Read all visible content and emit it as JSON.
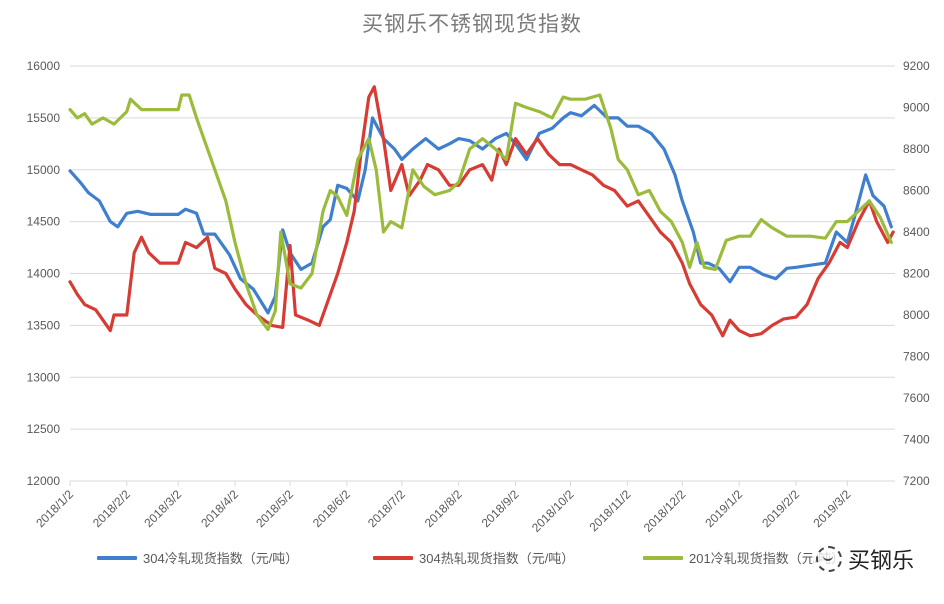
{
  "chart_data": {
    "type": "line",
    "title": "买钢乐不锈钢现货指数",
    "xlabel": "",
    "ylabel_left": "",
    "ylabel_right": "",
    "x_ticks": [
      "2018/1/2",
      "2018/2/2",
      "2018/3/2",
      "2018/4/2",
      "2018/5/2",
      "2018/6/2",
      "2018/7/2",
      "2018/8/2",
      "2018/9/2",
      "2018/10/2",
      "2018/11/2",
      "2018/12/2",
      "2019/1/2",
      "2019/2/2",
      "2019/3/2"
    ],
    "y_left": {
      "ticks": [
        12000,
        12500,
        13000,
        13500,
        14000,
        14500,
        15000,
        15500,
        16000
      ],
      "ylim": [
        12000,
        16000
      ]
    },
    "y_right": {
      "ticks": [
        7200,
        7400,
        7600,
        7800,
        8000,
        8200,
        8400,
        8600,
        8800,
        9000,
        9200
      ],
      "ylim": [
        7200,
        9200
      ]
    },
    "grid": true,
    "legend_position": "bottom",
    "series": [
      {
        "name": "304冷轧现货指数（元/吨）",
        "axis": "left",
        "color": "#3f7fce",
        "points": [
          [
            "2018/1/2",
            14990
          ],
          [
            "2018/1/8",
            14870
          ],
          [
            "2018/1/12",
            14780
          ],
          [
            "2018/1/18",
            14700
          ],
          [
            "2018/1/24",
            14500
          ],
          [
            "2018/1/28",
            14450
          ],
          [
            "2018/2/2",
            14580
          ],
          [
            "2018/2/8",
            14600
          ],
          [
            "2018/2/15",
            14570
          ],
          [
            "2018/2/25",
            14570
          ],
          [
            "2018/3/2",
            14570
          ],
          [
            "2018/3/6",
            14620
          ],
          [
            "2018/3/12",
            14580
          ],
          [
            "2018/3/16",
            14380
          ],
          [
            "2018/3/22",
            14380
          ],
          [
            "2018/3/30",
            14180
          ],
          [
            "2018/4/5",
            13950
          ],
          [
            "2018/4/12",
            13850
          ],
          [
            "2018/4/20",
            13620
          ],
          [
            "2018/4/24",
            13780
          ],
          [
            "2018/4/28",
            14420
          ],
          [
            "2018/5/2",
            14200
          ],
          [
            "2018/5/8",
            14040
          ],
          [
            "2018/5/14",
            14100
          ],
          [
            "2018/5/20",
            14450
          ],
          [
            "2018/5/24",
            14520
          ],
          [
            "2018/5/28",
            14850
          ],
          [
            "2018/6/2",
            14820
          ],
          [
            "2018/6/8",
            14700
          ],
          [
            "2018/6/12",
            15000
          ],
          [
            "2018/6/16",
            15500
          ],
          [
            "2018/6/22",
            15300
          ],
          [
            "2018/6/28",
            15200
          ],
          [
            "2018/7/2",
            15100
          ],
          [
            "2018/7/8",
            15200
          ],
          [
            "2018/7/15",
            15300
          ],
          [
            "2018/7/22",
            15200
          ],
          [
            "2018/7/28",
            15250
          ],
          [
            "2018/8/2",
            15300
          ],
          [
            "2018/8/8",
            15280
          ],
          [
            "2018/8/15",
            15200
          ],
          [
            "2018/8/22",
            15300
          ],
          [
            "2018/8/28",
            15350
          ],
          [
            "2018/9/2",
            15250
          ],
          [
            "2018/9/8",
            15100
          ],
          [
            "2018/9/15",
            15350
          ],
          [
            "2018/9/22",
            15400
          ],
          [
            "2018/9/28",
            15500
          ],
          [
            "2018/10/2",
            15550
          ],
          [
            "2018/10/8",
            15520
          ],
          [
            "2018/10/15",
            15620
          ],
          [
            "2018/10/22",
            15500
          ],
          [
            "2018/10/28",
            15500
          ],
          [
            "2018/11/2",
            15420
          ],
          [
            "2018/11/8",
            15420
          ],
          [
            "2018/11/15",
            15350
          ],
          [
            "2018/11/22",
            15200
          ],
          [
            "2018/11/28",
            14950
          ],
          [
            "2018/12/2",
            14700
          ],
          [
            "2018/12/8",
            14400
          ],
          [
            "2018/12/12",
            14100
          ],
          [
            "2018/12/16",
            14100
          ],
          [
            "2018/12/22",
            14050
          ],
          [
            "2018/12/28",
            13920
          ],
          [
            "2019/1/2",
            14060
          ],
          [
            "2019/1/8",
            14060
          ],
          [
            "2019/1/15",
            13990
          ],
          [
            "2019/1/22",
            13950
          ],
          [
            "2019/1/28",
            14050
          ],
          [
            "2019/2/2",
            14060
          ],
          [
            "2019/2/10",
            14080
          ],
          [
            "2019/2/18",
            14100
          ],
          [
            "2019/2/24",
            14400
          ],
          [
            "2019/3/2",
            14300
          ],
          [
            "2019/3/6",
            14550
          ],
          [
            "2019/3/12",
            14950
          ],
          [
            "2019/3/16",
            14750
          ],
          [
            "2019/3/22",
            14650
          ],
          [
            "2019/3/26",
            14450
          ]
        ]
      },
      {
        "name": "304热轧现货指数（元/吨）",
        "axis": "left",
        "color": "#d63c33",
        "points": [
          [
            "2018/1/2",
            13920
          ],
          [
            "2018/1/6",
            13800
          ],
          [
            "2018/1/10",
            13700
          ],
          [
            "2018/1/16",
            13650
          ],
          [
            "2018/1/20",
            13550
          ],
          [
            "2018/1/24",
            13450
          ],
          [
            "2018/1/26",
            13600
          ],
          [
            "2018/2/2",
            13600
          ],
          [
            "2018/2/6",
            14200
          ],
          [
            "2018/2/10",
            14350
          ],
          [
            "2018/2/14",
            14200
          ],
          [
            "2018/2/20",
            14100
          ],
          [
            "2018/3/2",
            14100
          ],
          [
            "2018/3/6",
            14300
          ],
          [
            "2018/3/12",
            14250
          ],
          [
            "2018/3/18",
            14350
          ],
          [
            "2018/3/22",
            14050
          ],
          [
            "2018/3/28",
            14000
          ],
          [
            "2018/4/2",
            13850
          ],
          [
            "2018/4/8",
            13700
          ],
          [
            "2018/4/14",
            13600
          ],
          [
            "2018/4/22",
            13500
          ],
          [
            "2018/4/28",
            13480
          ],
          [
            "2018/5/2",
            14270
          ],
          [
            "2018/5/5",
            13600
          ],
          [
            "2018/5/12",
            13550
          ],
          [
            "2018/5/18",
            13500
          ],
          [
            "2018/5/24",
            13800
          ],
          [
            "2018/5/28",
            14000
          ],
          [
            "2018/6/2",
            14300
          ],
          [
            "2018/6/6",
            14600
          ],
          [
            "2018/6/10",
            15200
          ],
          [
            "2018/6/14",
            15700
          ],
          [
            "2018/6/17",
            15800
          ],
          [
            "2018/6/22",
            15300
          ],
          [
            "2018/6/26",
            14800
          ],
          [
            "2018/7/2",
            15050
          ],
          [
            "2018/7/6",
            14750
          ],
          [
            "2018/7/12",
            14900
          ],
          [
            "2018/7/16",
            15050
          ],
          [
            "2018/7/22",
            15000
          ],
          [
            "2018/7/28",
            14850
          ],
          [
            "2018/8/2",
            14850
          ],
          [
            "2018/8/8",
            15000
          ],
          [
            "2018/8/15",
            15050
          ],
          [
            "2018/8/20",
            14900
          ],
          [
            "2018/8/24",
            15200
          ],
          [
            "2018/8/28",
            15050
          ],
          [
            "2018/9/2",
            15300
          ],
          [
            "2018/9/8",
            15150
          ],
          [
            "2018/9/14",
            15300
          ],
          [
            "2018/9/20",
            15150
          ],
          [
            "2018/9/26",
            15050
          ],
          [
            "2018/10/2",
            15050
          ],
          [
            "2018/10/8",
            15000
          ],
          [
            "2018/10/14",
            14950
          ],
          [
            "2018/10/20",
            14850
          ],
          [
            "2018/10/26",
            14800
          ],
          [
            "2018/11/2",
            14650
          ],
          [
            "2018/11/8",
            14700
          ],
          [
            "2018/11/14",
            14550
          ],
          [
            "2018/11/20",
            14400
          ],
          [
            "2018/11/26",
            14300
          ],
          [
            "2018/12/2",
            14100
          ],
          [
            "2018/12/6",
            13900
          ],
          [
            "2018/12/12",
            13700
          ],
          [
            "2018/12/18",
            13600
          ],
          [
            "2018/12/24",
            13400
          ],
          [
            "2018/12/28",
            13550
          ],
          [
            "2019/1/2",
            13450
          ],
          [
            "2019/1/8",
            13400
          ],
          [
            "2019/1/14",
            13420
          ],
          [
            "2019/1/20",
            13500
          ],
          [
            "2019/1/26",
            13560
          ],
          [
            "2019/2/2",
            13580
          ],
          [
            "2019/2/8",
            13700
          ],
          [
            "2019/2/14",
            13950
          ],
          [
            "2019/2/20",
            14100
          ],
          [
            "2019/2/26",
            14300
          ],
          [
            "2019/3/2",
            14250
          ],
          [
            "2019/3/8",
            14500
          ],
          [
            "2019/3/14",
            14700
          ],
          [
            "2019/3/18",
            14500
          ],
          [
            "2019/3/24",
            14300
          ],
          [
            "2019/3/27",
            14400
          ]
        ]
      },
      {
        "name": "201冷轧现货指数（元/吨）",
        "axis": "right",
        "color": "#9bbb3c",
        "points": [
          [
            "2018/1/2",
            8990
          ],
          [
            "2018/1/6",
            8950
          ],
          [
            "2018/1/10",
            8970
          ],
          [
            "2018/1/14",
            8920
          ],
          [
            "2018/1/20",
            8950
          ],
          [
            "2018/1/26",
            8920
          ],
          [
            "2018/2/2",
            8980
          ],
          [
            "2018/2/4",
            9040
          ],
          [
            "2018/2/10",
            8990
          ],
          [
            "2018/2/20",
            8990
          ],
          [
            "2018/3/2",
            8990
          ],
          [
            "2018/3/4",
            9060
          ],
          [
            "2018/3/8",
            9060
          ],
          [
            "2018/3/12",
            8950
          ],
          [
            "2018/3/16",
            8850
          ],
          [
            "2018/3/20",
            8750
          ],
          [
            "2018/3/28",
            8550
          ],
          [
            "2018/4/2",
            8350
          ],
          [
            "2018/4/8",
            8150
          ],
          [
            "2018/4/14",
            8000
          ],
          [
            "2018/4/20",
            7930
          ],
          [
            "2018/4/24",
            8020
          ],
          [
            "2018/4/27",
            8400
          ],
          [
            "2018/5/2",
            8150
          ],
          [
            "2018/5/8",
            8130
          ],
          [
            "2018/5/14",
            8200
          ],
          [
            "2018/5/20",
            8500
          ],
          [
            "2018/5/24",
            8600
          ],
          [
            "2018/5/28",
            8570
          ],
          [
            "2018/6/2",
            8480
          ],
          [
            "2018/6/8",
            8750
          ],
          [
            "2018/6/14",
            8850
          ],
          [
            "2018/6/18",
            8700
          ],
          [
            "2018/6/22",
            8400
          ],
          [
            "2018/6/26",
            8450
          ],
          [
            "2018/7/2",
            8420
          ],
          [
            "2018/7/8",
            8700
          ],
          [
            "2018/7/14",
            8620
          ],
          [
            "2018/7/20",
            8580
          ],
          [
            "2018/7/28",
            8600
          ],
          [
            "2018/8/2",
            8640
          ],
          [
            "2018/8/8",
            8800
          ],
          [
            "2018/8/15",
            8850
          ],
          [
            "2018/8/22",
            8800
          ],
          [
            "2018/8/28",
            8750
          ],
          [
            "2018/9/2",
            9020
          ],
          [
            "2018/9/8",
            9000
          ],
          [
            "2018/9/15",
            8980
          ],
          [
            "2018/9/22",
            8950
          ],
          [
            "2018/9/28",
            9050
          ],
          [
            "2018/10/2",
            9040
          ],
          [
            "2018/10/10",
            9040
          ],
          [
            "2018/10/18",
            9060
          ],
          [
            "2018/10/24",
            8900
          ],
          [
            "2018/10/28",
            8750
          ],
          [
            "2018/11/2",
            8700
          ],
          [
            "2018/11/8",
            8580
          ],
          [
            "2018/11/14",
            8600
          ],
          [
            "2018/11/20",
            8500
          ],
          [
            "2018/11/26",
            8450
          ],
          [
            "2018/12/2",
            8350
          ],
          [
            "2018/12/6",
            8230
          ],
          [
            "2018/12/10",
            8350
          ],
          [
            "2018/12/14",
            8230
          ],
          [
            "2018/12/20",
            8220
          ],
          [
            "2018/12/26",
            8360
          ],
          [
            "2019/1/2",
            8380
          ],
          [
            "2019/1/8",
            8380
          ],
          [
            "2019/1/14",
            8460
          ],
          [
            "2019/1/20",
            8420
          ],
          [
            "2019/1/28",
            8380
          ],
          [
            "2019/2/2",
            8380
          ],
          [
            "2019/2/10",
            8380
          ],
          [
            "2019/2/18",
            8370
          ],
          [
            "2019/2/24",
            8450
          ],
          [
            "2019/3/2",
            8450
          ],
          [
            "2019/3/8",
            8500
          ],
          [
            "2019/3/14",
            8550
          ],
          [
            "2019/3/20",
            8470
          ],
          [
            "2019/3/26",
            8350
          ]
        ]
      }
    ]
  },
  "legend": {
    "items": [
      {
        "label": "304冷轧现货指数（元/吨）",
        "color": "#3f7fce"
      },
      {
        "label": "304热轧现货指数（元/吨）",
        "color": "#d63c33"
      },
      {
        "label": "201冷轧现货指数（元/吨）",
        "color": "#9bbb3c"
      }
    ]
  },
  "watermark": {
    "text": "买钢乐"
  }
}
